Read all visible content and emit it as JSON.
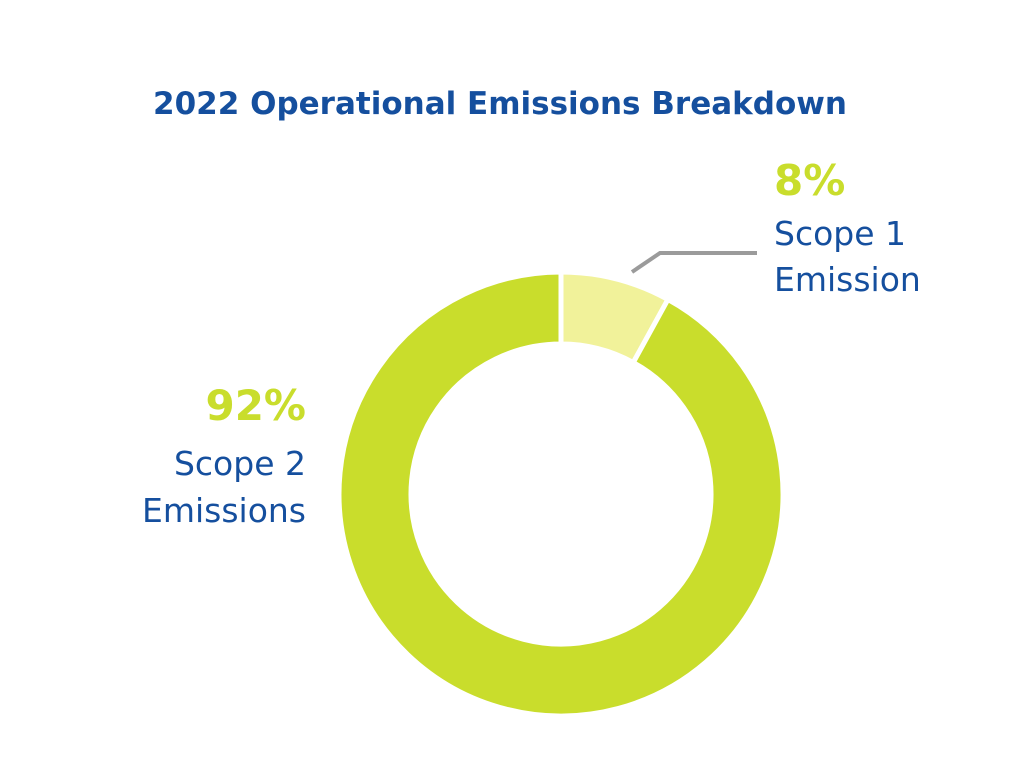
{
  "chart_data": {
    "type": "pie",
    "title": "2022 Operational Emissions Breakdown",
    "slices": [
      {
        "percent_label": "8%",
        "value": 8,
        "label_line1": "Scope 1",
        "label_line2": "Emission",
        "color": "#f1f29a"
      },
      {
        "percent_label": "92%",
        "value": 92,
        "label_line1": "Scope 2",
        "label_line2": "Emissions",
        "color": "#c9dd2c"
      }
    ],
    "style": "donut",
    "legend": "none"
  },
  "colors": {
    "title": "#154f9e",
    "label": "#154f9e",
    "percent": "#c9dd2c",
    "leader_line": "#9b9b9b",
    "background": "#ffffff"
  }
}
